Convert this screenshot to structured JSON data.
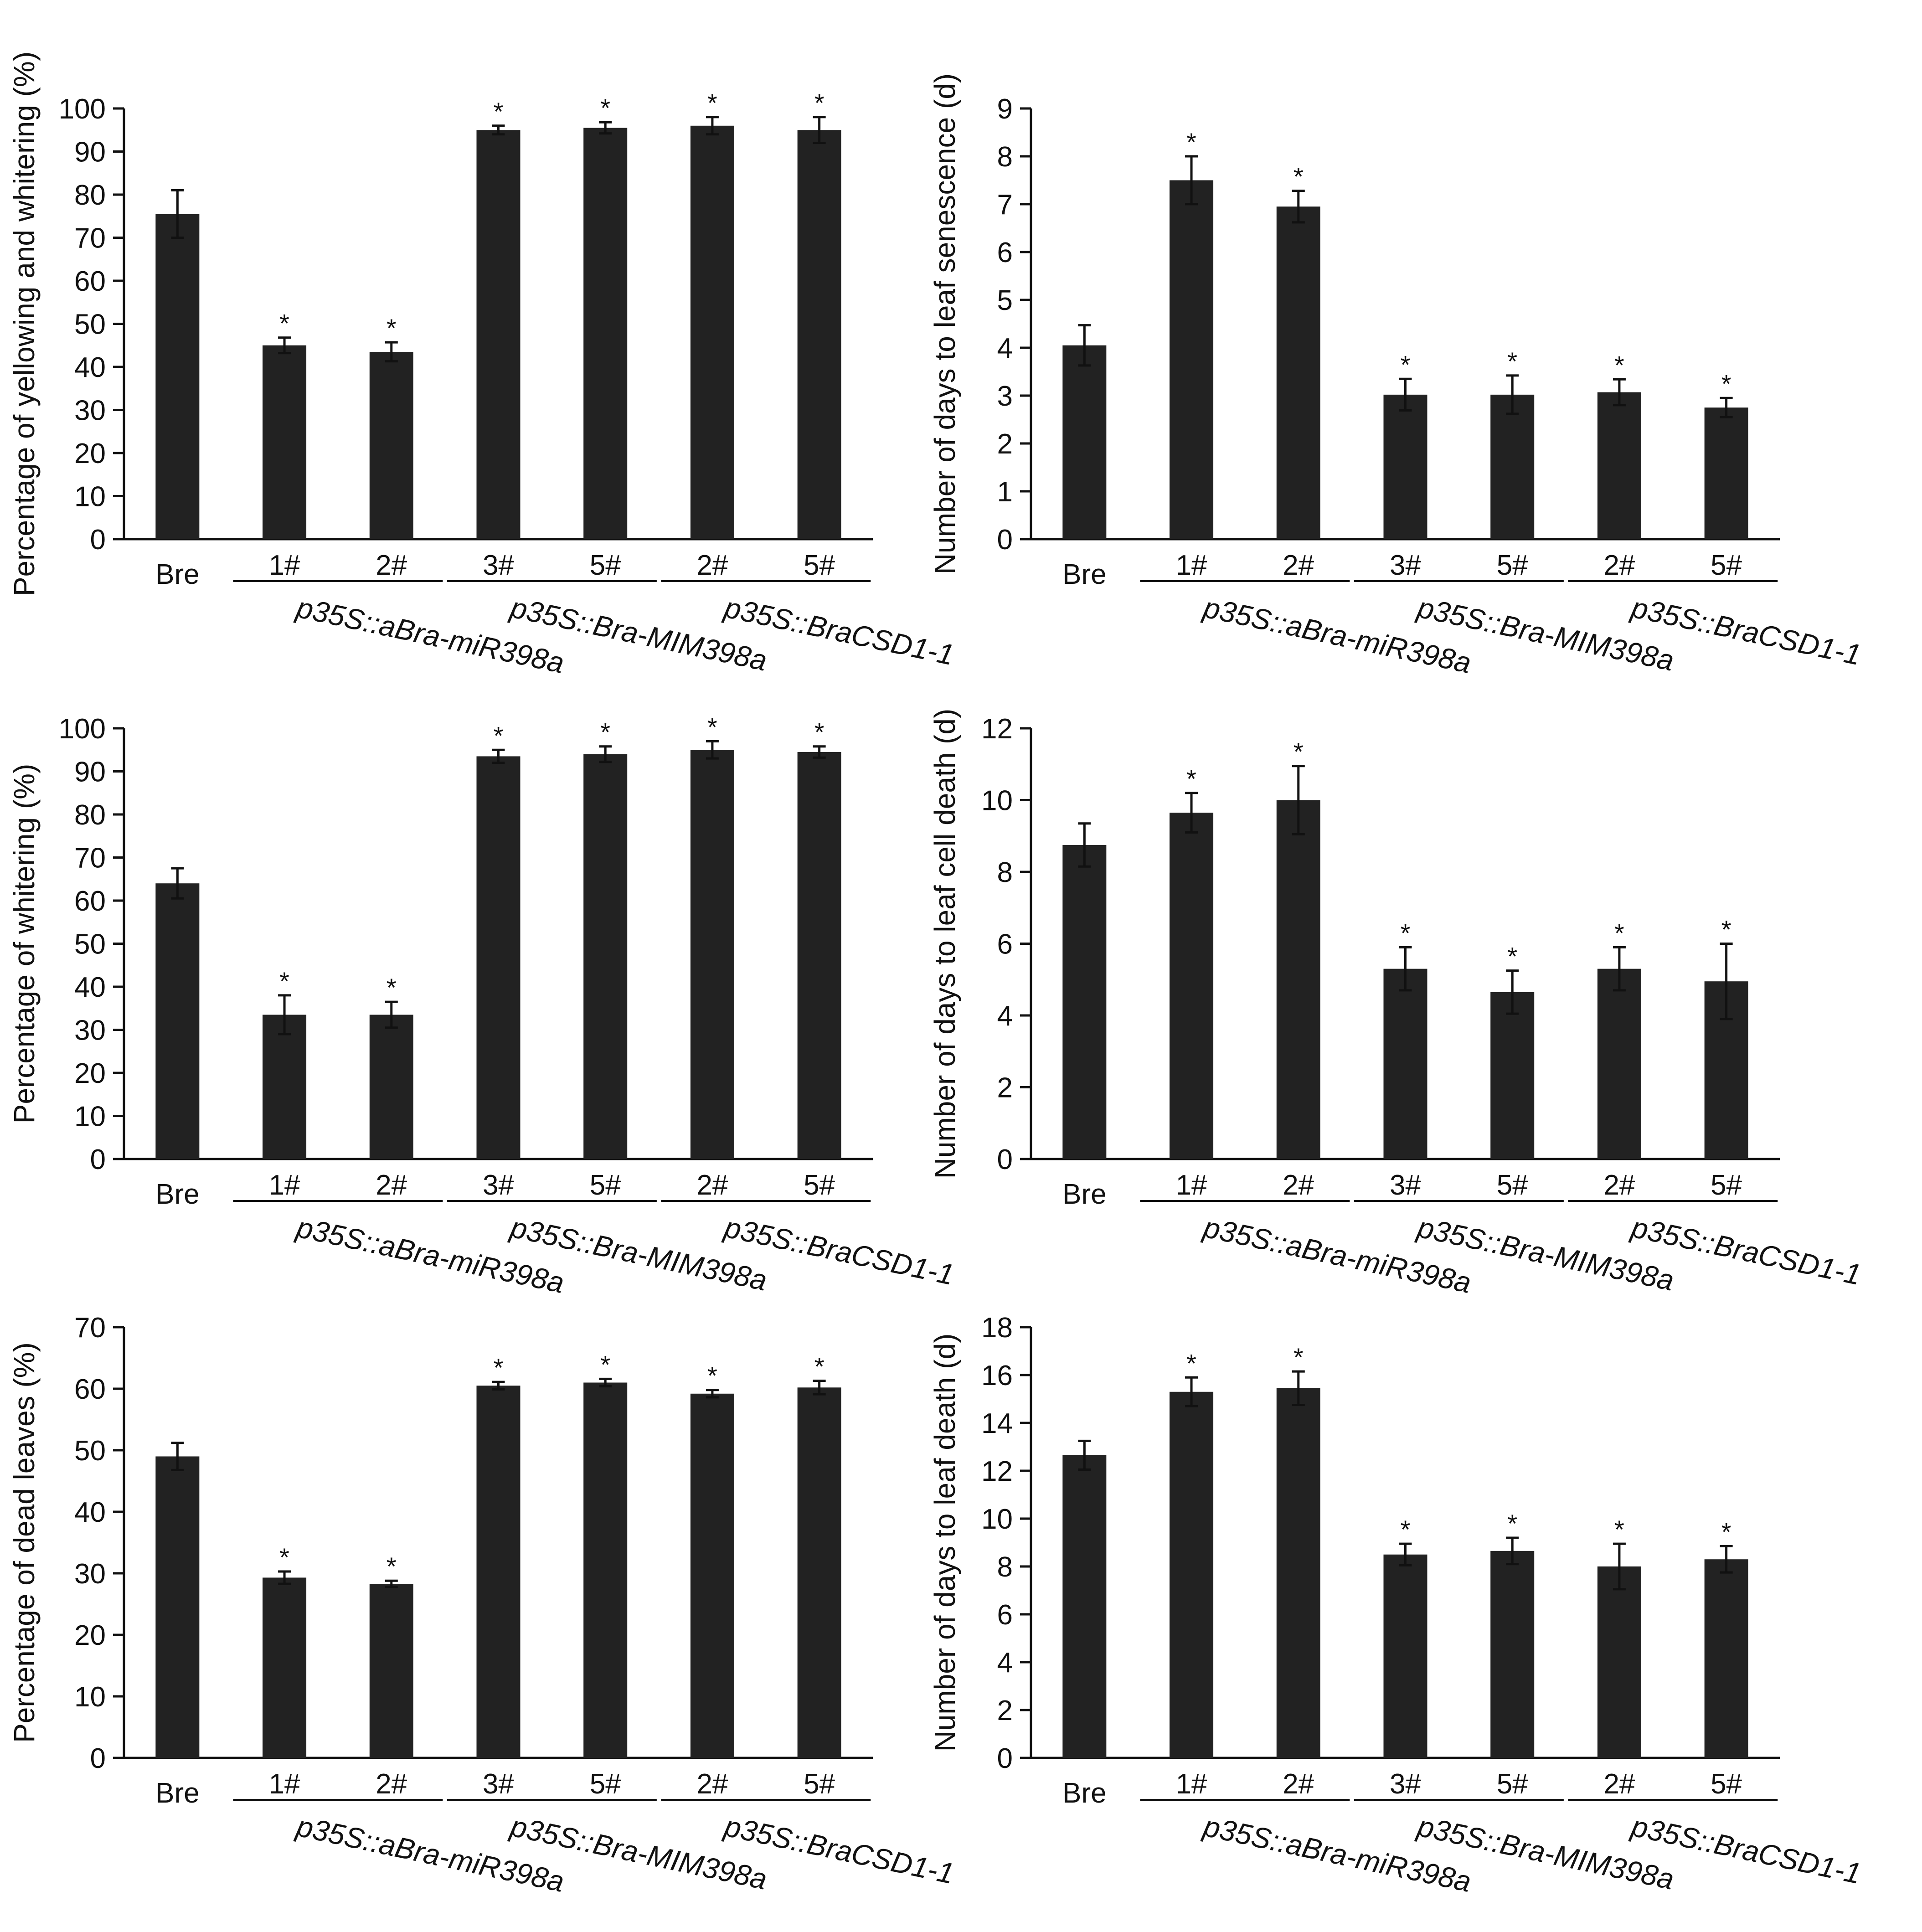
{
  "chart_data": [
    {
      "type": "bar",
      "ylabel": "Percentage of yellowing and whitering (%)",
      "ylim": [
        0,
        100
      ],
      "yticks": [
        0,
        10,
        20,
        30,
        40,
        50,
        60,
        70,
        80,
        90,
        100
      ],
      "categories": [
        "Bre",
        "1#",
        "2#",
        "3#",
        "5#",
        "2#",
        "5#"
      ],
      "groups": [
        {
          "label": "p35S::aBra-miR398a",
          "members": [
            1,
            2
          ]
        },
        {
          "label": "p35S::Bra-MIM398a",
          "members": [
            3,
            4
          ]
        },
        {
          "label": "p35S::BraCSD1-1",
          "members": [
            5,
            6
          ]
        }
      ],
      "values": [
        75.5,
        45,
        43.5,
        95,
        95.5,
        96,
        95
      ],
      "errors": [
        5.5,
        1.8,
        2.2,
        1,
        1.3,
        2,
        3
      ],
      "significance": [
        "",
        "*",
        "*",
        "*",
        "*",
        "*",
        "*"
      ],
      "grid": false
    },
    {
      "type": "bar",
      "ylabel": "Number of days to leaf senescence (d)",
      "ylim": [
        0,
        9
      ],
      "yticks": [
        0,
        1,
        2,
        3,
        4,
        5,
        6,
        7,
        8,
        9
      ],
      "categories": [
        "Bre",
        "1#",
        "2#",
        "3#",
        "5#",
        "2#",
        "5#"
      ],
      "groups": [
        {
          "label": "p35S::aBra-miR398a",
          "members": [
            1,
            2
          ]
        },
        {
          "label": "p35S::Bra-MIM398a",
          "members": [
            3,
            4
          ]
        },
        {
          "label": "p35S::BraCSD1-1",
          "members": [
            5,
            6
          ]
        }
      ],
      "values": [
        4.05,
        7.5,
        6.95,
        3.02,
        3.02,
        3.07,
        2.75
      ],
      "errors": [
        0.42,
        0.5,
        0.33,
        0.33,
        0.4,
        0.27,
        0.2
      ],
      "significance": [
        "",
        "*",
        "*",
        "*",
        "*",
        "*",
        "*"
      ],
      "grid": false
    },
    {
      "type": "bar",
      "ylabel": "Percentage of whitering (%)",
      "ylim": [
        0,
        100
      ],
      "yticks": [
        0,
        10,
        20,
        30,
        40,
        50,
        60,
        70,
        80,
        90,
        100
      ],
      "categories": [
        "Bre",
        "1#",
        "2#",
        "3#",
        "5#",
        "2#",
        "5#"
      ],
      "groups": [
        {
          "label": "p35S::aBra-miR398a",
          "members": [
            1,
            2
          ]
        },
        {
          "label": "p35S::Bra-MIM398a",
          "members": [
            3,
            4
          ]
        },
        {
          "label": "p35S::BraCSD1-1",
          "members": [
            5,
            6
          ]
        }
      ],
      "values": [
        64,
        33.5,
        33.5,
        93.5,
        94,
        95,
        94.5
      ],
      "errors": [
        3.5,
        4.5,
        3,
        1.5,
        1.8,
        2,
        1.3
      ],
      "significance": [
        "",
        "*",
        "*",
        "*",
        "*",
        "*",
        "*"
      ],
      "grid": false
    },
    {
      "type": "bar",
      "ylabel": "Number of days to leaf cell death (d)",
      "ylim": [
        0,
        12
      ],
      "yticks": [
        0,
        2,
        4,
        6,
        8,
        10,
        12
      ],
      "categories": [
        "Bre",
        "1#",
        "2#",
        "3#",
        "5#",
        "2#",
        "5#"
      ],
      "groups": [
        {
          "label": "p35S::aBra-miR398a",
          "members": [
            1,
            2
          ]
        },
        {
          "label": "p35S::Bra-MIM398a",
          "members": [
            3,
            4
          ]
        },
        {
          "label": "p35S::BraCSD1-1",
          "members": [
            5,
            6
          ]
        }
      ],
      "values": [
        8.75,
        9.65,
        10,
        5.3,
        4.65,
        5.3,
        4.95
      ],
      "errors": [
        0.6,
        0.55,
        0.95,
        0.6,
        0.6,
        0.6,
        1.05
      ],
      "significance": [
        "",
        "*",
        "*",
        "*",
        "*",
        "*",
        "*"
      ],
      "grid": false
    },
    {
      "type": "bar",
      "ylabel": "Percentage of dead leaves (%)",
      "ylim": [
        0,
        70
      ],
      "yticks": [
        0,
        10,
        20,
        30,
        40,
        50,
        60,
        70
      ],
      "categories": [
        "Bre",
        "1#",
        "2#",
        "3#",
        "5#",
        "2#",
        "5#"
      ],
      "groups": [
        {
          "label": "p35S::aBra-miR398a",
          "members": [
            1,
            2
          ]
        },
        {
          "label": "p35S::Bra-MIM398a",
          "members": [
            3,
            4
          ]
        },
        {
          "label": "p35S::BraCSD1-1",
          "members": [
            5,
            6
          ]
        }
      ],
      "values": [
        49,
        29.3,
        28.3,
        60.5,
        61,
        59.2,
        60.2
      ],
      "errors": [
        2.2,
        1,
        0.5,
        0.6,
        0.6,
        0.6,
        1.1
      ],
      "significance": [
        "",
        "*",
        "*",
        "*",
        "*",
        "*",
        "*"
      ],
      "grid": false
    },
    {
      "type": "bar",
      "ylabel": "Number of days to leaf death (d)",
      "ylim": [
        0,
        18
      ],
      "yticks": [
        0,
        2,
        4,
        6,
        8,
        10,
        12,
        14,
        16,
        18
      ],
      "categories": [
        "Bre",
        "1#",
        "2#",
        "3#",
        "5#",
        "2#",
        "5#"
      ],
      "groups": [
        {
          "label": "p35S::aBra-miR398a",
          "members": [
            1,
            2
          ]
        },
        {
          "label": "p35S::Bra-MIM398a",
          "members": [
            3,
            4
          ]
        },
        {
          "label": "p35S::BraCSD1-1",
          "members": [
            5,
            6
          ]
        }
      ],
      "values": [
        12.65,
        15.3,
        15.45,
        8.5,
        8.65,
        8,
        8.3
      ],
      "errors": [
        0.6,
        0.6,
        0.7,
        0.45,
        0.55,
        0.95,
        0.55
      ],
      "significance": [
        "",
        "*",
        "*",
        "*",
        "*",
        "*",
        "*"
      ],
      "grid": false
    }
  ]
}
